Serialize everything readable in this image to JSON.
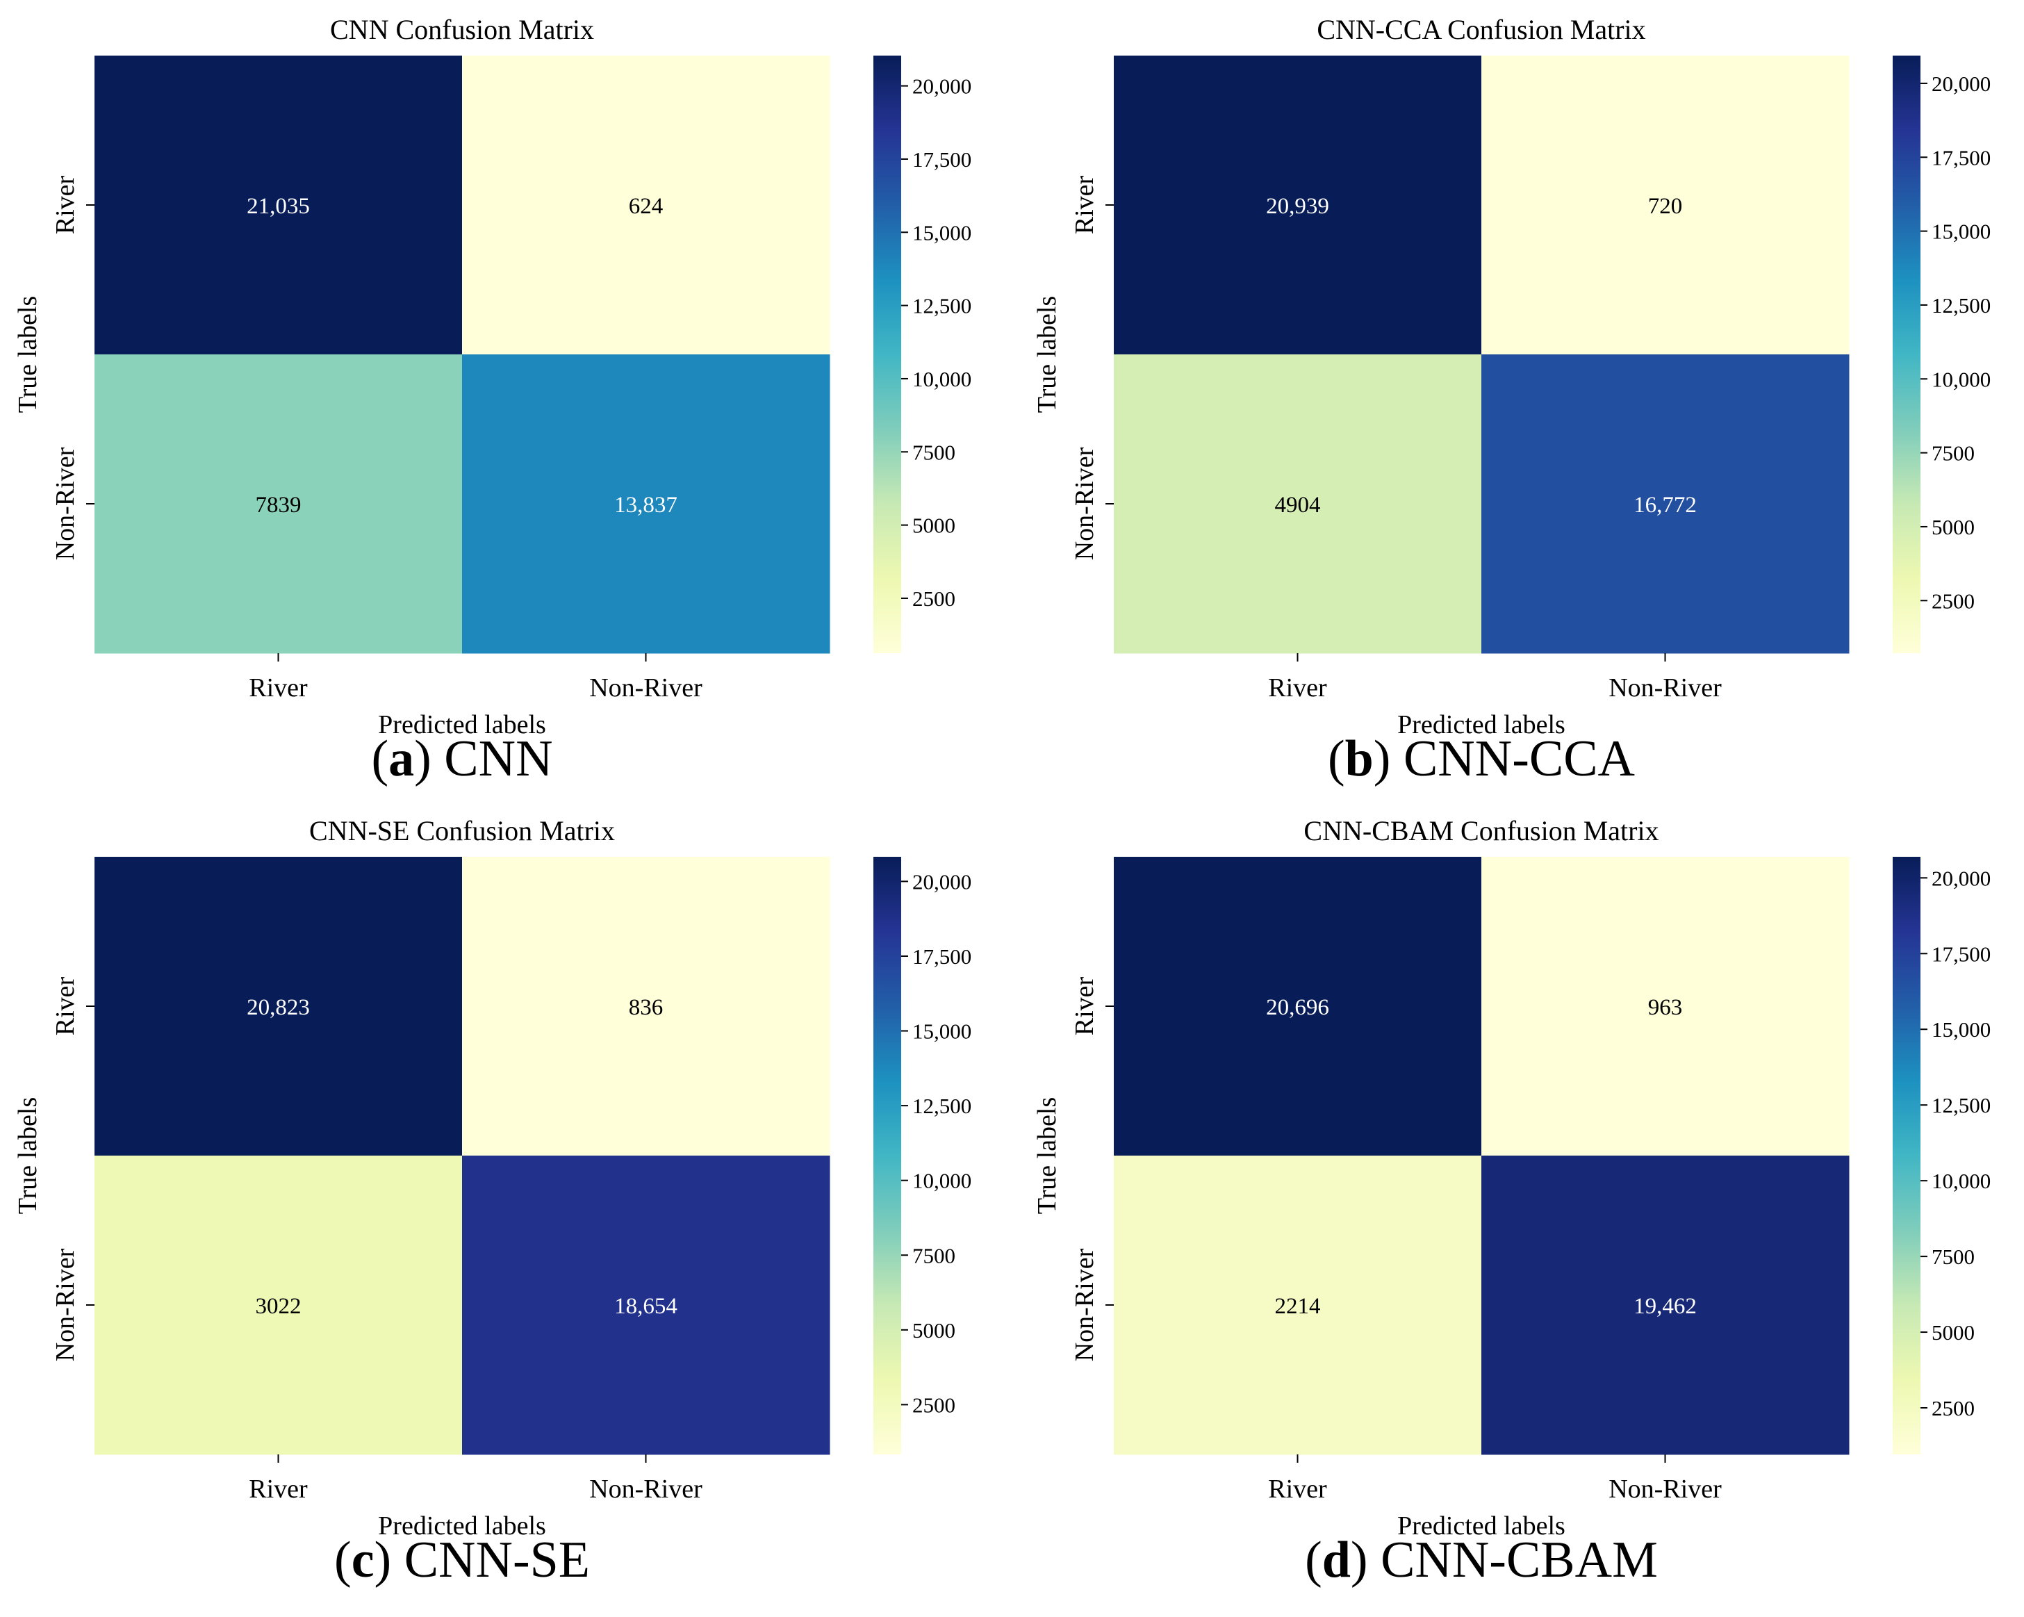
{
  "figure": {
    "colors": {
      "colormap": [
        "#ffffd9",
        "#edf8b1",
        "#c7e9b4",
        "#7fcdbb",
        "#41b6c4",
        "#1d91c0",
        "#225ea8",
        "#253494",
        "#081d58"
      ],
      "text_dark": "#000000",
      "text_light": "#ffffff"
    }
  },
  "chart_data": [
    {
      "type": "heatmap",
      "title": "CNN Confusion Matrix",
      "xlabel": "Predicted labels",
      "ylabel": "True labels",
      "x_categories": [
        "River",
        "Non-River"
      ],
      "y_categories": [
        "River",
        "Non-River"
      ],
      "values": [
        [
          21035,
          624
        ],
        [
          7839,
          13837
        ]
      ],
      "value_labels": [
        [
          "21,035",
          "624"
        ],
        [
          "7839",
          "13,837"
        ]
      ],
      "colorbar": {
        "range": [
          624,
          21035
        ],
        "ticks": [
          2500,
          5000,
          7500,
          10000,
          12500,
          15000,
          17500,
          20000
        ],
        "tick_labels": [
          "2500",
          "5000",
          "7500",
          "10,000",
          "12,500",
          "15,000",
          "17,500",
          "20,000"
        ]
      },
      "caption": {
        "letter": "a",
        "text": "CNN"
      }
    },
    {
      "type": "heatmap",
      "title": "CNN-CCA Confusion Matrix",
      "xlabel": "Predicted labels",
      "ylabel": "True labels",
      "x_categories": [
        "River",
        "Non-River"
      ],
      "y_categories": [
        "River",
        "Non-River"
      ],
      "values": [
        [
          20939,
          720
        ],
        [
          4904,
          16772
        ]
      ],
      "value_labels": [
        [
          "20,939",
          "720"
        ],
        [
          "4904",
          "16,772"
        ]
      ],
      "colorbar": {
        "range": [
          720,
          20939
        ],
        "ticks": [
          2500,
          5000,
          7500,
          10000,
          12500,
          15000,
          17500,
          20000
        ],
        "tick_labels": [
          "2500",
          "5000",
          "7500",
          "10,000",
          "12,500",
          "15,000",
          "17,500",
          "20,000"
        ]
      },
      "caption": {
        "letter": "b",
        "text": "CNN-CCA"
      }
    },
    {
      "type": "heatmap",
      "title": "CNN-SE Confusion Matrix",
      "xlabel": "Predicted labels",
      "ylabel": "True labels",
      "x_categories": [
        "River",
        "Non-River"
      ],
      "y_categories": [
        "River",
        "Non-River"
      ],
      "values": [
        [
          20823,
          836
        ],
        [
          3022,
          18654
        ]
      ],
      "value_labels": [
        [
          "20,823",
          "836"
        ],
        [
          "3022",
          "18,654"
        ]
      ],
      "colorbar": {
        "range": [
          836,
          20823
        ],
        "ticks": [
          2500,
          5000,
          7500,
          10000,
          12500,
          15000,
          17500,
          20000
        ],
        "tick_labels": [
          "2500",
          "5000",
          "7500",
          "10,000",
          "12,500",
          "15,000",
          "17,500",
          "20,000"
        ]
      },
      "caption": {
        "letter": "c",
        "text": "CNN-SE"
      }
    },
    {
      "type": "heatmap",
      "title": "CNN-CBAM Confusion Matrix",
      "xlabel": "Predicted labels",
      "ylabel": "True labels",
      "x_categories": [
        "River",
        "Non-River"
      ],
      "y_categories": [
        "River",
        "Non-River"
      ],
      "values": [
        [
          20696,
          963
        ],
        [
          2214,
          19462
        ]
      ],
      "value_labels": [
        [
          "20,696",
          "963"
        ],
        [
          "2214",
          "19,462"
        ]
      ],
      "colorbar": {
        "range": [
          963,
          20696
        ],
        "ticks": [
          2500,
          5000,
          7500,
          10000,
          12500,
          15000,
          17500,
          20000
        ],
        "tick_labels": [
          "2500",
          "5000",
          "7500",
          "10,000",
          "12,500",
          "15,000",
          "17,500",
          "20,000"
        ]
      },
      "caption": {
        "letter": "d",
        "text": "CNN-CBAM"
      }
    }
  ]
}
